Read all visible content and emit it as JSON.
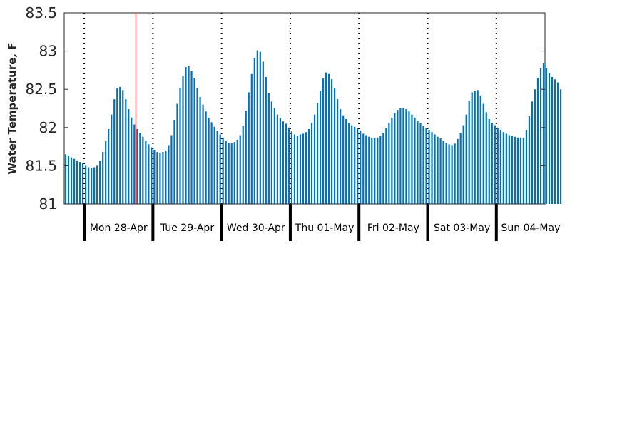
{
  "chart_data": {
    "type": "bar",
    "title": "",
    "xlabel": "",
    "ylabel": "Water Temperature, F",
    "ylim": [
      81,
      83.5
    ],
    "yticks": [
      "81",
      "81.5",
      "82",
      "82.5",
      "83",
      "83.5"
    ],
    "grid": false,
    "bar_color": "#0072bd",
    "now_marker_color": "#ff0000",
    "now_marker_hour": 18,
    "day_labels": [
      "Mon 28-Apr",
      "Tue 29-Apr",
      "Wed 30-Apr",
      "Thu 01-May",
      "Fri 02-May",
      "Sat 03-May",
      "Sun 04-May"
    ],
    "day_boundary_hours": [
      0,
      24,
      48,
      72,
      96,
      120,
      144
    ],
    "hour_start": -7,
    "hour_end": 161,
    "interval_hours": 1,
    "values": [
      81.65,
      81.63,
      81.61,
      81.59,
      81.57,
      81.55,
      81.53,
      81.5,
      81.48,
      81.47,
      81.48,
      81.5,
      81.57,
      81.68,
      81.82,
      81.98,
      82.17,
      82.37,
      82.51,
      82.53,
      82.49,
      82.37,
      82.24,
      82.13,
      82.04,
      81.98,
      81.93,
      81.88,
      81.83,
      81.78,
      81.74,
      81.71,
      81.68,
      81.67,
      81.68,
      81.7,
      81.77,
      81.9,
      82.1,
      82.31,
      82.52,
      82.67,
      82.79,
      82.8,
      82.74,
      82.65,
      82.52,
      82.4,
      82.3,
      82.21,
      82.13,
      82.07,
      82.01,
      81.96,
      81.91,
      81.87,
      81.83,
      81.8,
      81.8,
      81.81,
      81.84,
      81.9,
      82.02,
      82.22,
      82.46,
      82.7,
      82.91,
      83.01,
      82.99,
      82.86,
      82.66,
      82.45,
      82.34,
      82.25,
      82.17,
      82.12,
      82.08,
      82.05,
      82.0,
      81.95,
      81.91,
      81.89,
      81.91,
      81.92,
      81.94,
      81.98,
      82.06,
      82.17,
      82.32,
      82.48,
      82.64,
      82.72,
      82.7,
      82.63,
      82.51,
      82.37,
      82.24,
      82.16,
      82.11,
      82.06,
      82.03,
      82.01,
      81.99,
      81.96,
      81.92,
      81.9,
      81.88,
      81.86,
      81.86,
      81.87,
      81.89,
      81.93,
      81.99,
      82.06,
      82.13,
      82.19,
      82.23,
      82.25,
      82.25,
      82.24,
      82.21,
      82.17,
      82.13,
      82.09,
      82.06,
      82.02,
      81.99,
      81.97,
      81.94,
      81.91,
      81.88,
      81.86,
      81.83,
      81.8,
      81.78,
      81.77,
      81.79,
      81.85,
      81.93,
      82.03,
      82.17,
      82.35,
      82.46,
      82.48,
      82.49,
      82.42,
      82.31,
      82.2,
      82.11,
      82.06,
      82.03,
      82.0,
      81.97,
      81.94,
      81.92,
      81.9,
      81.89,
      81.88,
      81.87,
      81.87,
      81.86,
      81.97,
      82.15,
      82.34,
      82.5,
      82.65,
      82.78,
      82.84,
      82.78,
      82.71,
      82.66,
      82.63,
      82.59,
      82.5
    ]
  }
}
